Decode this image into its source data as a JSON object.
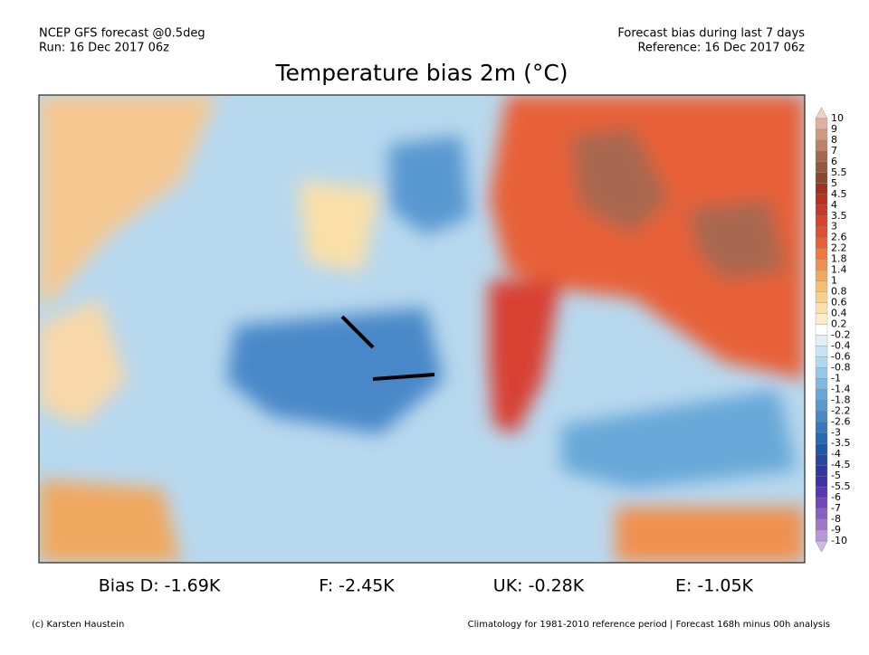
{
  "header": {
    "left_line1": "NCEP GFS forecast @0.5deg",
    "left_line2": "Run: 16 Dec 2017 06z",
    "right_line1": "Forecast bias during last 7 days",
    "right_line2": "Reference: 16 Dec 2017 06z"
  },
  "title": "Temperature bias 2m (°C)",
  "colorbar": {
    "levels": [
      10,
      9,
      8,
      7,
      6,
      5.5,
      5,
      4.5,
      4,
      3.5,
      3,
      2.6,
      2.2,
      1.8,
      1.4,
      1,
      0.8,
      0.6,
      0.4,
      0.2,
      -0.2,
      -0.4,
      -0.6,
      -0.8,
      -1,
      -1.4,
      -1.8,
      -2.2,
      -2.6,
      -3,
      -3.5,
      -4,
      -4.5,
      -5,
      -5.5,
      -6,
      -7,
      -8,
      -9,
      -10
    ],
    "colors": [
      "#f0d0c8",
      "#e0b0a0",
      "#d09880",
      "#c08068",
      "#a86850",
      "#985840",
      "#884830",
      "#a03020",
      "#b83020",
      "#c83828",
      "#d84030",
      "#e05030",
      "#e86038",
      "#f07840",
      "#f09050",
      "#f0a860",
      "#f4c070",
      "#f8d088",
      "#fae0a8",
      "#fcecc8",
      "#ffffff",
      "#e0f0f8",
      "#c8e4f4",
      "#b0d8f0",
      "#98c8e8",
      "#80b8e0",
      "#68a8d8",
      "#5898d0",
      "#4888c8",
      "#3878c0",
      "#2868b8",
      "#2058a8",
      "#2848a0",
      "#3038a0",
      "#4030a8",
      "#5838b0",
      "#7048b8",
      "#8860c0",
      "#a078c8",
      "#b898d8",
      "#d0b8e8"
    ]
  },
  "stats": [
    "Bias D: -1.69K",
    "F: -2.45K",
    "UK: -0.28K",
    "E: -1.05K"
  ],
  "footer": {
    "left": "(c) Karsten Haustein",
    "right": "Climatology for 1981-2010 reference period | Forecast 168h minus 00h analysis"
  }
}
